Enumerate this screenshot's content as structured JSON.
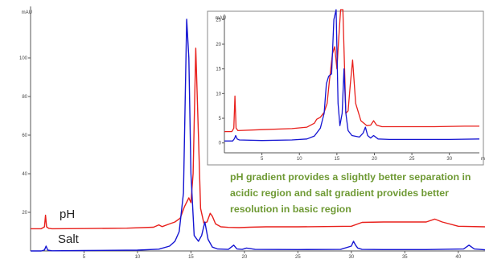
{
  "chart_data": [
    {
      "type": "line",
      "ylabel": "mAU",
      "xlim": [
        0,
        42.5
      ],
      "ylim": [
        0,
        130
      ],
      "x_ticks": [
        "5",
        "10",
        "15",
        "20",
        "25",
        "30",
        "35",
        "40"
      ],
      "y_ticks": [
        "20",
        "40",
        "60",
        "80",
        "100"
      ],
      "series": [
        {
          "name": "pH",
          "color": "#e8201c",
          "x": [
            0,
            1.0,
            1.3,
            1.4,
            1.5,
            1.7,
            2.0,
            5,
            9,
            11.5,
            12.0,
            12.3,
            13.0,
            13.5,
            14.0,
            14.4,
            14.8,
            15.0,
            15.2,
            15.45,
            15.7,
            15.9,
            16.2,
            16.5,
            16.8,
            17.0,
            17.3,
            17.8,
            18.5,
            19.5,
            20.5,
            22,
            25,
            30,
            31,
            33,
            35,
            37,
            37.8,
            38.5,
            40,
            42.5
          ],
          "y": [
            11.5,
            11.5,
            12.5,
            18.5,
            12.5,
            11.7,
            11.5,
            11.6,
            11.8,
            12.3,
            13.5,
            12.6,
            14,
            15,
            17,
            23,
            27.5,
            25,
            40,
            105,
            60,
            22,
            14.5,
            15,
            19.5,
            18,
            14,
            12.5,
            12.2,
            12.1,
            12.3,
            12.5,
            12.5,
            12.8,
            14.8,
            15,
            15,
            15,
            16.5,
            15,
            12.8,
            12.5
          ]
        },
        {
          "name": "Salt",
          "color": "#1515d2",
          "x": [
            0,
            1.0,
            1.3,
            1.45,
            1.6,
            2.0,
            5,
            10,
            12,
            13.0,
            13.5,
            13.9,
            14.3,
            14.6,
            14.8,
            15.0,
            15.3,
            15.7,
            16.0,
            16.3,
            16.6,
            17.0,
            17.5,
            18.5,
            19.0,
            19.3,
            19.8,
            20.2,
            21,
            25,
            29,
            30.0,
            30.2,
            30.4,
            30.6,
            31.0,
            33,
            37,
            40.5,
            41.0,
            41.5,
            42.5
          ],
          "y": [
            0,
            0,
            0.5,
            2.5,
            0.4,
            0.1,
            0.2,
            0.4,
            0.9,
            2.5,
            5,
            10,
            30,
            120,
            100,
            40,
            8,
            5,
            8,
            15,
            6,
            2,
            1,
            0.8,
            3,
            1,
            0.8,
            1.5,
            0.8,
            0.7,
            0.8,
            2.5,
            5,
            3,
            1.5,
            0.8,
            0.7,
            0.7,
            1,
            3,
            1,
            0.6
          ]
        }
      ]
    },
    {
      "type": "line",
      "ylabel": "mAU",
      "xlabel": "min",
      "xlim": [
        0,
        34
      ],
      "ylim": [
        -2,
        27
      ],
      "x_ticks": [
        "5",
        "10",
        "15",
        "20",
        "25",
        "30"
      ],
      "y_ticks": [
        "0",
        "5",
        "10",
        "15",
        "20",
        "25"
      ],
      "series": [
        {
          "name": "pH",
          "color": "#e8201c",
          "x": [
            0,
            1.0,
            1.25,
            1.4,
            1.55,
            1.8,
            5,
            9,
            11,
            12.0,
            12.3,
            12.8,
            13.3,
            13.7,
            14.0,
            14.4,
            14.7,
            15.0,
            15.2,
            15.5,
            15.8,
            16.2,
            16.5,
            16.8,
            17.1,
            17.5,
            18.2,
            19.0,
            19.5,
            19.9,
            20.3,
            21,
            24,
            28,
            32,
            34
          ],
          "y": [
            2.3,
            2.3,
            3,
            9.5,
            3,
            2.5,
            2.7,
            2.9,
            3.2,
            4,
            4.8,
            5.2,
            6.2,
            8,
            12.5,
            18,
            19.5,
            15,
            20,
            27,
            27,
            6,
            6.5,
            12,
            16.8,
            8,
            4.5,
            3.5,
            3.6,
            4.5,
            3.6,
            3.3,
            3.3,
            3.3,
            3.4,
            3.4
          ]
        },
        {
          "name": "Salt",
          "color": "#1515d2",
          "x": [
            0,
            1.1,
            1.35,
            1.5,
            1.7,
            2.0,
            5,
            9,
            11,
            12.0,
            12.8,
            13.3,
            13.6,
            13.9,
            14.3,
            14.6,
            14.9,
            15.15,
            15.4,
            15.7,
            15.95,
            16.2,
            16.5,
            17.0,
            18.0,
            18.5,
            18.8,
            19.1,
            19.5,
            19.9,
            20.5,
            22,
            26,
            30,
            34
          ],
          "y": [
            0.4,
            0.4,
            0.9,
            1.5,
            0.8,
            0.6,
            0.5,
            0.6,
            0.8,
            1.4,
            3,
            6,
            12,
            13.5,
            14,
            25,
            27,
            8,
            3.5,
            6,
            15,
            6,
            2.5,
            1.5,
            1.2,
            2,
            3.2,
            1.5,
            1,
            1.5,
            0.8,
            0.7,
            0.7,
            0.7,
            0.8
          ]
        }
      ]
    }
  ],
  "annotations": {
    "label_ph": "pH",
    "label_salt": "Salt",
    "note": "pH gradient provides a slightly better separation in acidic region and salt gradient provides better resolution in basic region"
  }
}
